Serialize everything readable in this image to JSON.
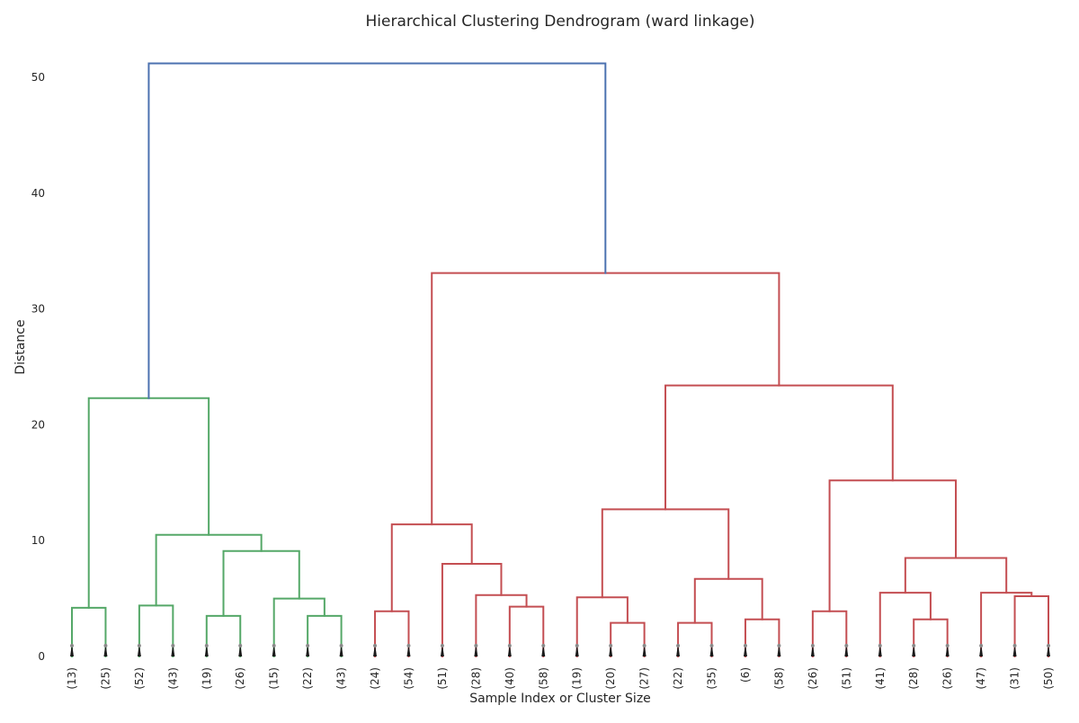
{
  "chart_data": {
    "type": "dendrogram",
    "title": "Hierarchical Clustering Dendrogram (ward linkage)",
    "xlabel": "Sample Index or Cluster Size",
    "ylabel": "Distance",
    "ylim": [
      0,
      52
    ],
    "yticks": [
      0,
      10,
      20,
      30,
      40,
      50
    ],
    "grid": false,
    "colors": {
      "above_threshold": "#4C72B0",
      "cluster_1": "#55A868",
      "cluster_2": "#C44E52"
    },
    "leaves": [
      "(13)",
      "(25)",
      "(52)",
      "(43)",
      "(19)",
      "(26)",
      "(15)",
      "(22)",
      "(43)",
      "(24)",
      "(54)",
      "(51)",
      "(28)",
      "(40)",
      "(58)",
      "(19)",
      "(20)",
      "(27)",
      "(22)",
      "(35)",
      "(6)",
      "(58)",
      "(26)",
      "(51)",
      "(41)",
      "(28)",
      "(26)",
      "(47)",
      "(31)",
      "(50)"
    ],
    "merges": [
      {
        "id": "g1",
        "left": 0,
        "right": 1,
        "distance": 4.2,
        "color": "cluster_1"
      },
      {
        "id": "g2",
        "left": 2,
        "right": 3,
        "distance": 4.4,
        "color": "cluster_1"
      },
      {
        "id": "g3",
        "left": 4,
        "right": 5,
        "distance": 3.5,
        "color": "cluster_1"
      },
      {
        "id": "g4",
        "left": 7,
        "right": 8,
        "distance": 3.5,
        "color": "cluster_1"
      },
      {
        "id": "g5",
        "left": 6,
        "right": "g4",
        "distance": 5.0,
        "color": "cluster_1"
      },
      {
        "id": "g6",
        "left": "g3",
        "right": "g5",
        "distance": 9.1,
        "color": "cluster_1"
      },
      {
        "id": "g7",
        "left": "g2",
        "right": "g6",
        "distance": 10.5,
        "color": "cluster_1"
      },
      {
        "id": "g8",
        "left": "g1",
        "right": "g7",
        "distance": 22.3,
        "color": "cluster_1"
      },
      {
        "id": "r1",
        "left": 9,
        "right": 10,
        "distance": 3.9,
        "color": "cluster_2"
      },
      {
        "id": "r2",
        "left": 13,
        "right": 14,
        "distance": 4.3,
        "color": "cluster_2"
      },
      {
        "id": "r3",
        "left": 12,
        "right": "r2",
        "distance": 5.3,
        "color": "cluster_2"
      },
      {
        "id": "r4",
        "left": 11,
        "right": "r3",
        "distance": 8.0,
        "color": "cluster_2"
      },
      {
        "id": "r5",
        "left": "r1",
        "right": "r4",
        "distance": 11.4,
        "color": "cluster_2"
      },
      {
        "id": "r6",
        "left": 16,
        "right": 17,
        "distance": 2.9,
        "color": "cluster_2"
      },
      {
        "id": "r7",
        "left": 15,
        "right": "r6",
        "distance": 5.1,
        "color": "cluster_2"
      },
      {
        "id": "r8",
        "left": 18,
        "right": 19,
        "distance": 2.9,
        "color": "cluster_2"
      },
      {
        "id": "r9",
        "left": 20,
        "right": 21,
        "distance": 3.2,
        "color": "cluster_2"
      },
      {
        "id": "r10",
        "left": "r8",
        "right": "r9",
        "distance": 6.7,
        "color": "cluster_2"
      },
      {
        "id": "r11",
        "left": "r7",
        "right": "r10",
        "distance": 12.7,
        "color": "cluster_2"
      },
      {
        "id": "r12",
        "left": 22,
        "right": 23,
        "distance": 3.9,
        "color": "cluster_2"
      },
      {
        "id": "r13",
        "left": 25,
        "right": 26,
        "distance": 3.2,
        "color": "cluster_2"
      },
      {
        "id": "r14",
        "left": 24,
        "right": "r13",
        "distance": 5.5,
        "color": "cluster_2"
      },
      {
        "id": "r15",
        "left": 28,
        "right": 29,
        "distance": 5.2,
        "color": "cluster_2"
      },
      {
        "id": "r16",
        "left": 27,
        "right": "r15",
        "distance": 5.5,
        "color": "cluster_2"
      },
      {
        "id": "r17",
        "left": "r14",
        "right": "r16",
        "distance": 8.5,
        "color": "cluster_2"
      },
      {
        "id": "r18",
        "left": "r12",
        "right": "r17",
        "distance": 15.2,
        "color": "cluster_2"
      },
      {
        "id": "r19",
        "left": "r11",
        "right": "r18",
        "distance": 23.4,
        "color": "cluster_2"
      },
      {
        "id": "r20",
        "left": "r5",
        "right": "r19",
        "distance": 33.1,
        "color": "cluster_2"
      },
      {
        "id": "root",
        "left": "g8",
        "right": "r20",
        "distance": 51.2,
        "color": "above_threshold"
      }
    ]
  }
}
